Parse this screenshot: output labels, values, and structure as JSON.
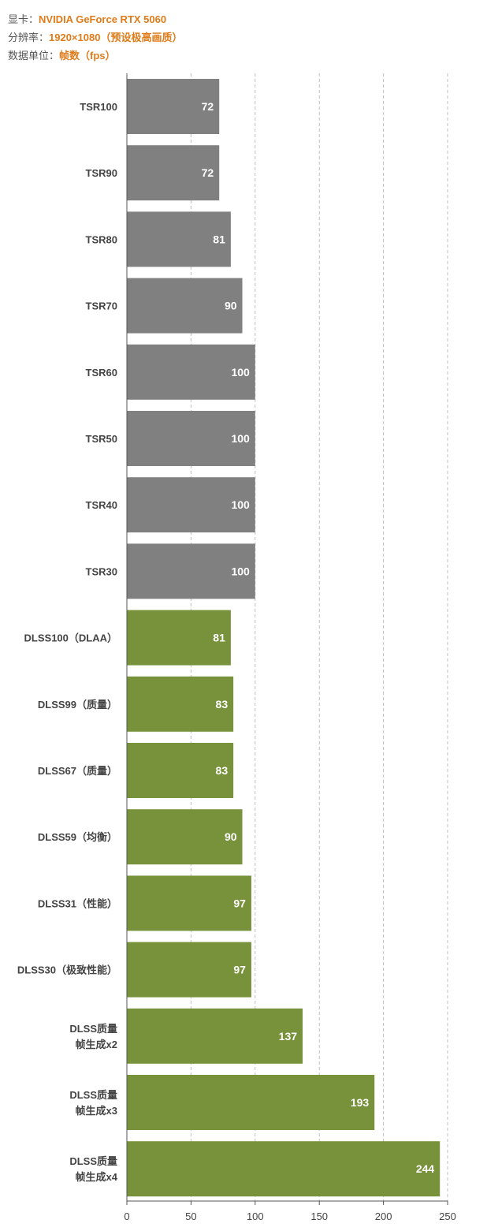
{
  "header": {
    "gpu_key": "显卡：",
    "gpu_value": "NVIDIA GeForce RTX 5060",
    "res_key": "分辨率：",
    "res_value": "1920×1080（预设极高画质）",
    "unit_key": "数据单位：",
    "unit_value": "帧数（fps）"
  },
  "colors": {
    "accent": "#e07b1a",
    "tsr_bar": "#808080",
    "dlss_bar": "#77923b",
    "grid": "#bfbfbf",
    "axis": "#555555"
  },
  "chart_data": {
    "type": "bar",
    "orientation": "horizontal",
    "categories": [
      "TSR100",
      "TSR90",
      "TSR80",
      "TSR70",
      "TSR60",
      "TSR50",
      "TSR40",
      "TSR30",
      "DLSS100（DLAA）",
      "DLSS99（质量）",
      "DLSS67（质量）",
      "DLSS59（均衡）",
      "DLSS31（性能）",
      "DLSS30（极致性能）",
      "DLSS质量\n帧生成x2",
      "DLSS质量\n帧生成x3",
      "DLSS质量\n帧生成x4"
    ],
    "values": [
      72,
      72,
      81,
      90,
      100,
      100,
      100,
      100,
      81,
      83,
      83,
      90,
      97,
      97,
      137,
      193,
      244
    ],
    "groups": [
      "TSR",
      "TSR",
      "TSR",
      "TSR",
      "TSR",
      "TSR",
      "TSR",
      "TSR",
      "DLSS",
      "DLSS",
      "DLSS",
      "DLSS",
      "DLSS",
      "DLSS",
      "DLSS",
      "DLSS",
      "DLSS"
    ],
    "xlim": [
      0,
      250
    ],
    "xticks": [
      0,
      50,
      100,
      150,
      200,
      250
    ],
    "grid": true,
    "grid_style": "dashed-vertical",
    "data_labels": true
  }
}
